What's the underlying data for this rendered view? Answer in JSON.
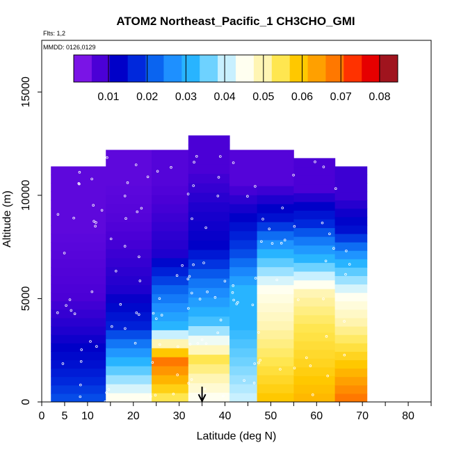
{
  "chart_data": {
    "type": "heatmap",
    "title": "ATOM2 Northeast_Pacific_1 CH3CHO_GMI",
    "annotations": [
      "Flts: 1,2",
      "MMDD: 0126,0129"
    ],
    "xlabel": "Latitude (deg N)",
    "ylabel": "Altitude (m)",
    "xlim": [
      0,
      85
    ],
    "ylim": [
      0,
      17500
    ],
    "x_ticks": [
      0,
      5,
      10,
      20,
      30,
      40,
      50,
      60,
      70,
      80
    ],
    "y_ticks": [
      0,
      5000,
      10000,
      15000
    ],
    "colorbar": {
      "orientation": "horizontal",
      "placement": "top",
      "tick_values": [
        0.01,
        0.02,
        0.03,
        0.04,
        0.05,
        0.06,
        0.07,
        0.08
      ],
      "colors": [
        "#7a14e6",
        "#4b00d6",
        "#0000c8",
        "#0028dc",
        "#0a64f0",
        "#1e90ff",
        "#28b4ff",
        "#6ed2ff",
        "#c8f0ff",
        "#fffff0",
        "#fff5b4",
        "#ffe650",
        "#ffc800",
        "#ffa000",
        "#ff7800",
        "#ff3200",
        "#e60000",
        "#a0141e"
      ]
    },
    "grid": false,
    "marker_latitude": 35,
    "profiles": [
      {
        "lat": [
          2,
          14
        ],
        "alt": [
          0,
          11400
        ],
        "values": [
          0.018,
          0.012,
          0.008,
          0.005,
          0.004,
          0.003,
          0.003
        ]
      },
      {
        "lat": [
          14,
          24
        ],
        "alt": [
          0,
          12200
        ],
        "values": [
          0.045,
          0.03,
          0.014,
          0.008,
          0.006,
          0.004,
          0.003
        ]
      },
      {
        "lat": [
          24,
          32
        ],
        "alt": [
          0,
          12200
        ],
        "values": [
          0.055,
          0.07,
          0.03,
          0.02,
          0.008,
          0.006,
          0.004
        ]
      },
      {
        "lat": [
          32,
          41
        ],
        "alt": [
          0,
          12900
        ],
        "values": [
          0.045,
          0.055,
          0.032,
          0.022,
          0.01,
          0.008,
          0.005
        ]
      },
      {
        "lat": [
          41,
          47
        ],
        "alt": [
          0,
          12200
        ],
        "values": [
          0.04,
          0.035,
          0.03,
          0.03,
          0.018,
          0.01,
          0.004
        ]
      },
      {
        "lat": [
          47,
          55
        ],
        "alt": [
          0,
          12200
        ],
        "values": [
          0.06,
          0.055,
          0.05,
          0.045,
          0.03,
          0.012,
          0.004
        ]
      },
      {
        "lat": [
          55,
          64
        ],
        "alt": [
          0,
          11800
        ],
        "values": [
          0.062,
          0.058,
          0.055,
          0.05,
          0.03,
          0.015,
          0.005
        ]
      },
      {
        "lat": [
          64,
          71
        ],
        "alt": [
          0,
          11400
        ],
        "values": [
          0.07,
          0.06,
          0.052,
          0.045,
          0.03,
          0.012,
          0.006
        ]
      }
    ]
  }
}
